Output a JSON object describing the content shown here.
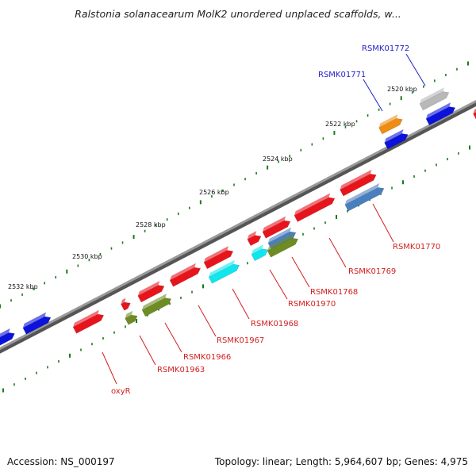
{
  "title": "Ralstonia solanacearum MolK2 unordered unplaced scaffolds, w...",
  "accession": "Accession: NS_000197",
  "topology": "Topology: linear; Length: 5,964,607 bp; Genes: 4,975",
  "colors": {
    "backbone": "#777777",
    "tick": "#1a7a1a",
    "red": "#e8141c",
    "blue": "#0b12dc",
    "cyan": "#10e6ee",
    "olive": "#6f8c24",
    "steel": "#4a7fbf",
    "orange": "#f08c10",
    "gray": "#b8b8b8",
    "label_red": "#d21f1f",
    "label_blue": "#1f1fcf"
  },
  "scale_labels": [
    "2520 kbp",
    "2522 kbp",
    "2524 kbp",
    "2526 kbp",
    "2528 kbp",
    "2530 kbp",
    "2532 kbp"
  ],
  "gene_labels": [
    {
      "text": "RSMK01772",
      "color": "blue"
    },
    {
      "text": "RSMK01771",
      "color": "blue"
    },
    {
      "text": "RSMK01770",
      "color": "red"
    },
    {
      "text": "RSMK01769",
      "color": "red"
    },
    {
      "text": "RSMK01768",
      "color": "red"
    },
    {
      "text": "RSMK01970",
      "color": "red"
    },
    {
      "text": "RSMK01968",
      "color": "red"
    },
    {
      "text": "RSMK01967",
      "color": "red"
    },
    {
      "text": "RSMK01966",
      "color": "red"
    },
    {
      "text": "RSMK01963",
      "color": "red"
    },
    {
      "text": "oxyR",
      "color": "red"
    }
  ]
}
